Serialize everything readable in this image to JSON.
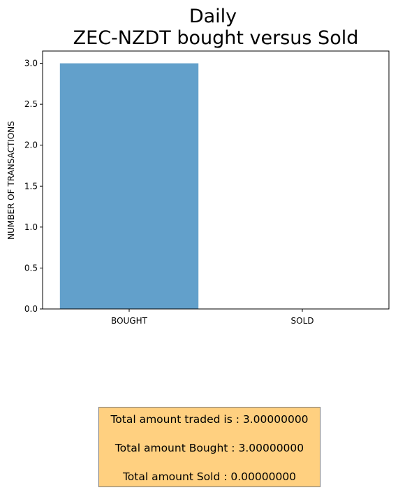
{
  "chart_data": {
    "type": "bar",
    "title": "Daily\nZEC-NZDT bought versus Sold",
    "title_lines": [
      "Daily",
      "ZEC-NZDT bought versus Sold"
    ],
    "categories": [
      "BOUGHT",
      "SOLD"
    ],
    "values": [
      3.0,
      0.0
    ],
    "xlabel": "",
    "ylabel": "NUMBER OF TRANSACTIONS",
    "ylim": [
      0,
      3.15
    ],
    "yticks": [
      "0.0",
      "0.5",
      "1.0",
      "1.5",
      "2.0",
      "2.5",
      "3.0"
    ],
    "bar_color": "#62a0cb",
    "grid": false,
    "legend": "none"
  },
  "summary": {
    "background": "#ffd080",
    "lines": [
      "Total amount traded is : 3.00000000",
      "Total amount Bought : 3.00000000",
      "Total amount Sold : 0.00000000"
    ]
  }
}
